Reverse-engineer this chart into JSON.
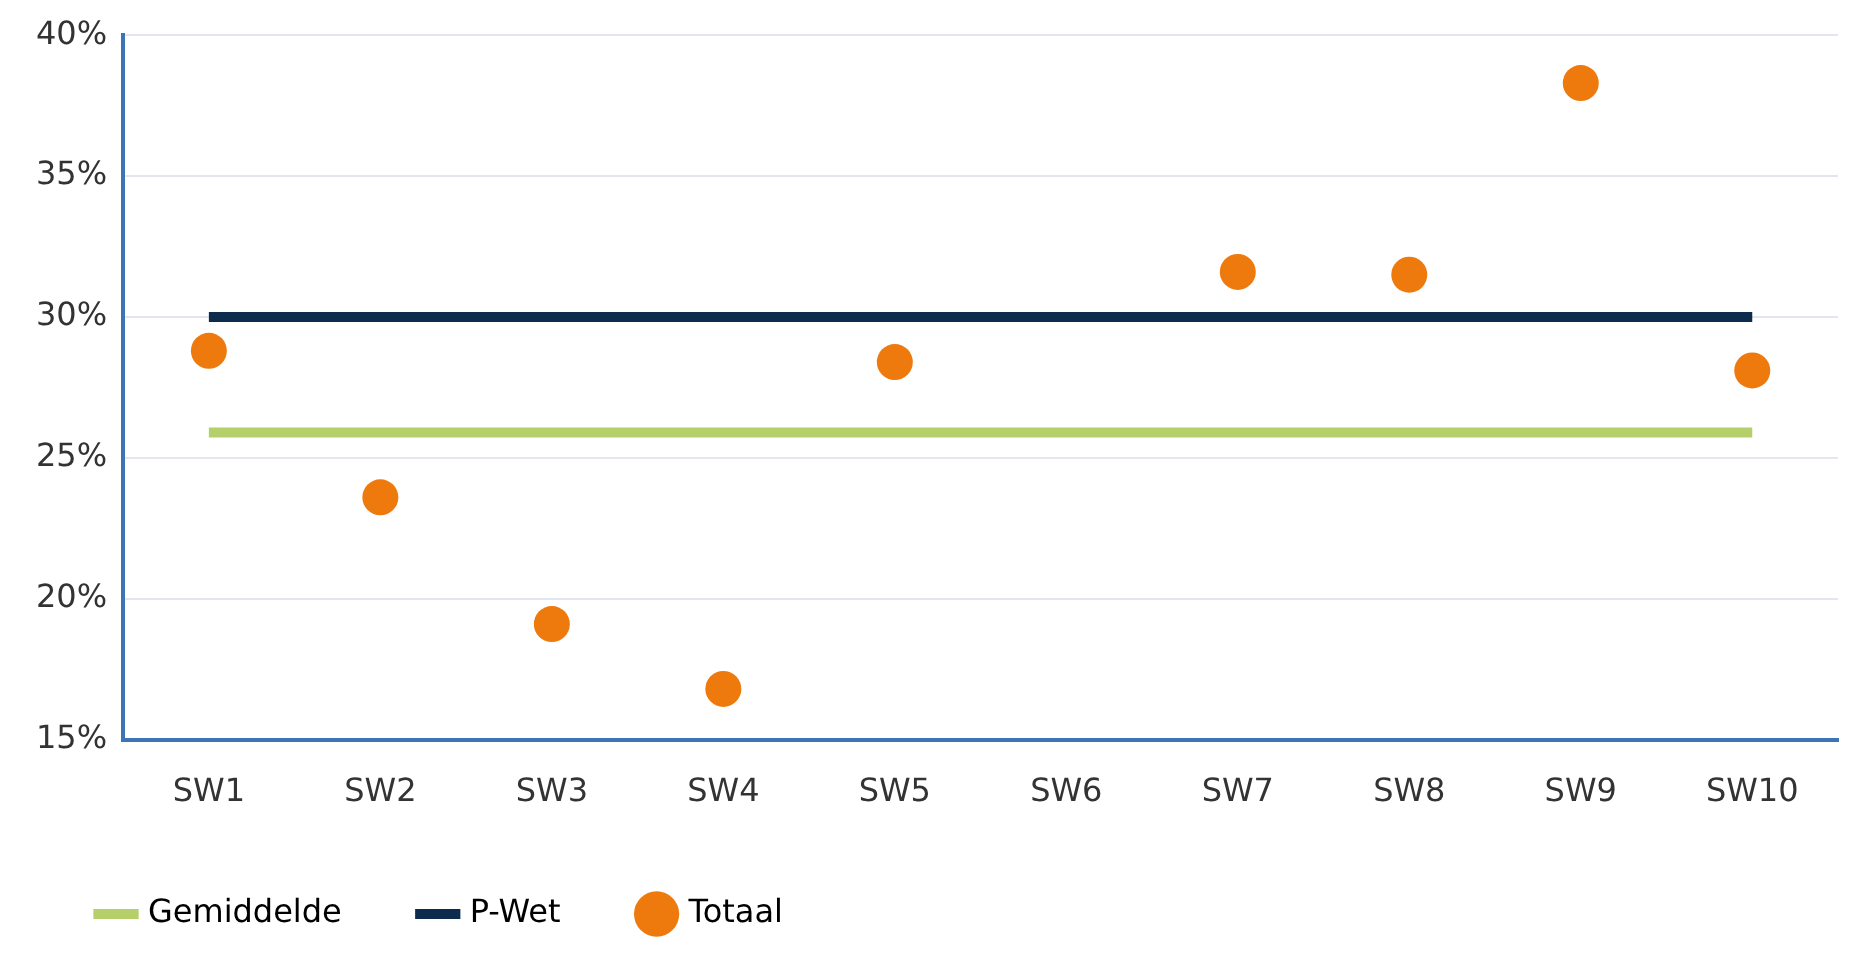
{
  "chart_data": {
    "type": "scatter",
    "categories": [
      "SW1",
      "SW2",
      "SW3",
      "SW4",
      "SW5",
      "SW6",
      "SW7",
      "SW8",
      "SW9",
      "SW10"
    ],
    "series": [
      {
        "name": "Gemiddelde",
        "type": "line",
        "marker": "none",
        "color": "#b5cf6b",
        "values": [
          25.9,
          25.9,
          25.9,
          25.9,
          25.9,
          25.9,
          25.9,
          25.9,
          25.9,
          25.9
        ]
      },
      {
        "name": "P-Wet",
        "type": "line",
        "marker": "none",
        "color": "#0d2b4c",
        "values": [
          30,
          30,
          30,
          30,
          30,
          30,
          30,
          30,
          30,
          30
        ]
      },
      {
        "name": "Totaal",
        "color": "#ee7a0e",
        "values": [
          28.8,
          23.6,
          19.1,
          16.8,
          28.4,
          null,
          31.6,
          31.5,
          38.3,
          28.1
        ]
      }
    ],
    "ylim": [
      15,
      40
    ],
    "yticks": [
      {
        "value": 15,
        "label": "15%"
      },
      {
        "value": 20,
        "label": "20%"
      },
      {
        "value": 25,
        "label": "25%"
      },
      {
        "value": 30,
        "label": "30%"
      },
      {
        "value": 35,
        "label": "35%"
      },
      {
        "value": 40,
        "label": "40%"
      }
    ],
    "grid": "y",
    "legend": "bottom left",
    "marker": "circle"
  }
}
